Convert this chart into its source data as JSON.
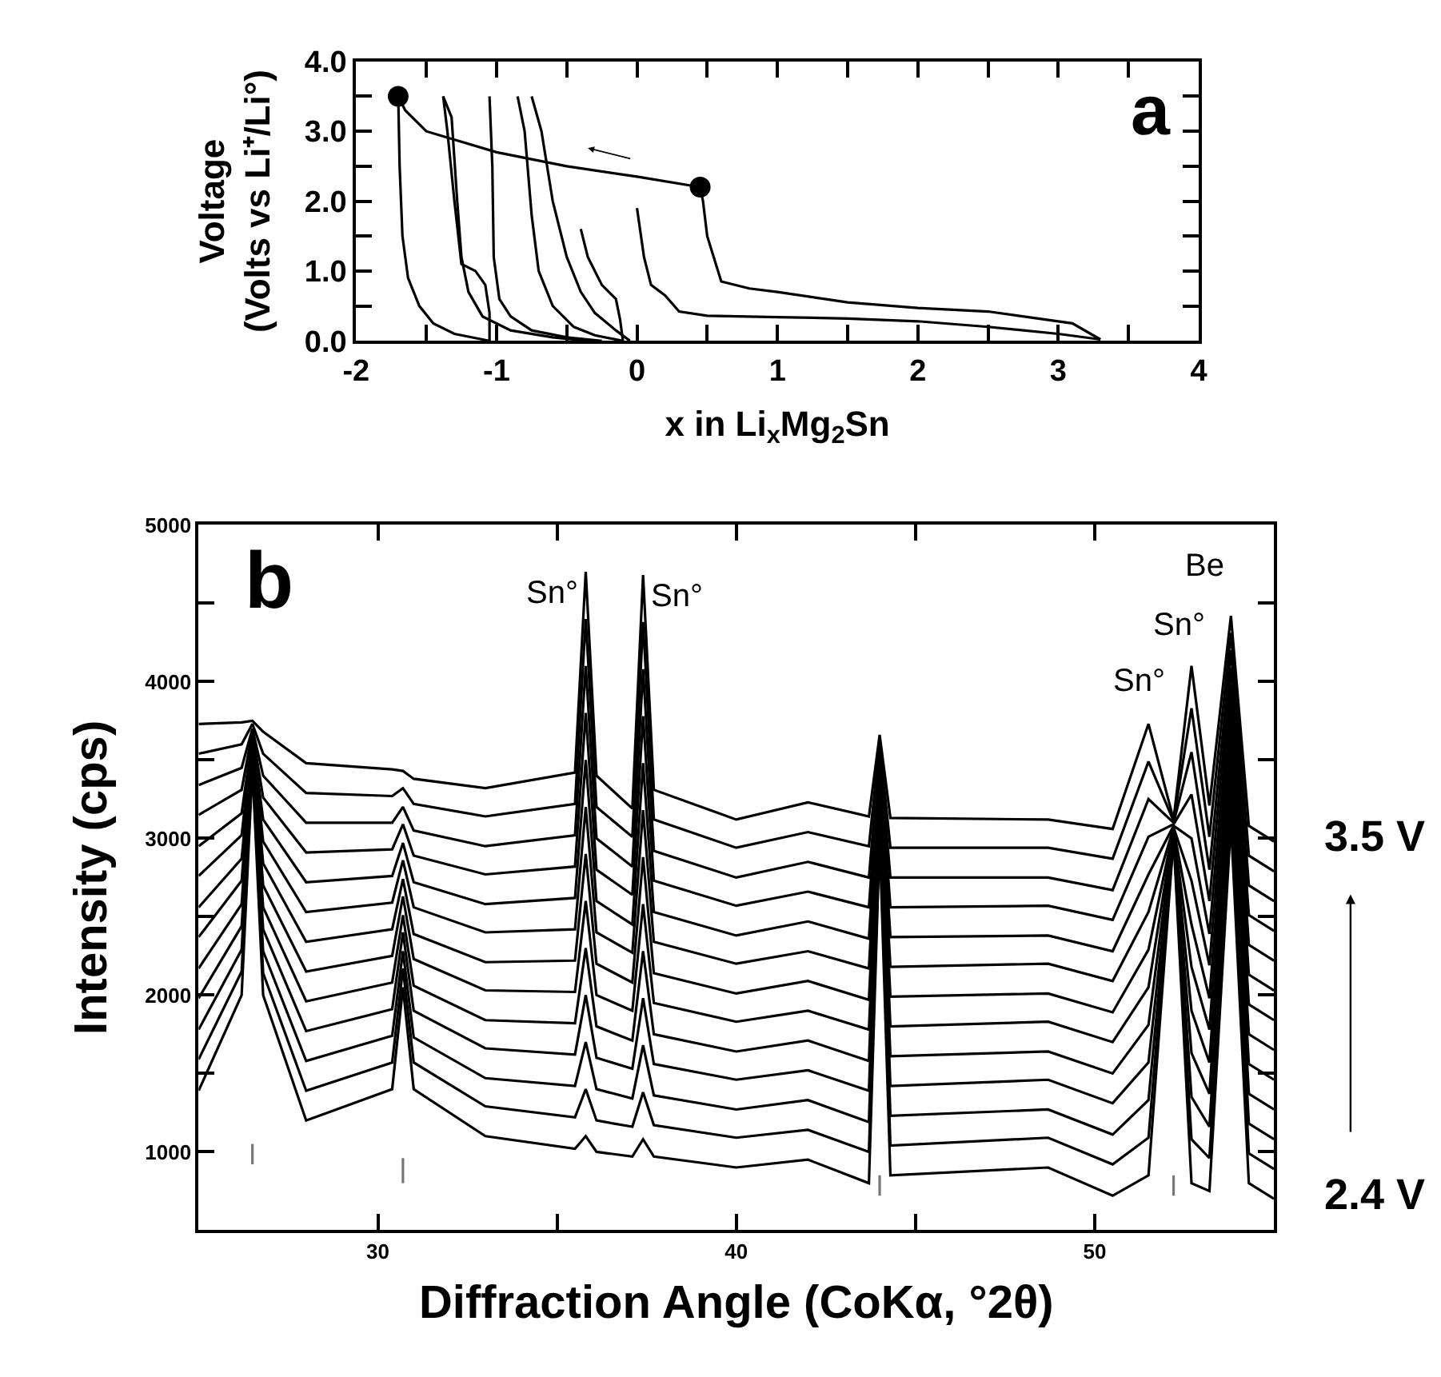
{
  "chart_data": [
    {
      "type": "line",
      "xlabel": "x in Li$_{x}$Mg$_{2}$Sn",
      "ylabel": "Voltage\n(Volts vs Li⁺/Li°)",
      "annotations": [
        "a"
      ],
      "xlim": [
        -2,
        4
      ],
      "xticks": [
        -2,
        {
          "value": -1.5,
          "label": null
        },
        -1,
        {
          "value": -0.5,
          "label": null
        },
        0,
        {
          "value": 0.5,
          "label": null
        },
        1,
        {
          "value": 1.5,
          "label": null
        },
        2,
        {
          "value": 2.5,
          "label": null
        },
        3,
        {
          "value": 3.5,
          "label": null
        },
        4
      ],
      "ylim": [
        0,
        4
      ],
      "yticks": [
        {
          "value": 0,
          "label": "0.0"
        },
        {
          "value": 0.5,
          "label": null
        },
        {
          "value": 1,
          "label": "1.0"
        },
        {
          "value": 1.5,
          "label": null
        },
        {
          "value": 2,
          "label": "2.0"
        },
        {
          "value": 2.5,
          "label": null
        },
        {
          "value": 3,
          "label": "3.0"
        },
        {
          "value": 3.5,
          "label": null
        },
        {
          "value": 4,
          "label": "4.0"
        }
      ],
      "marker": "none",
      "line_style": "solid",
      "series": [
        {
          "color": "#000000",
          "x": [
            0,
            0.05,
            0.1,
            0.2,
            0.3,
            0.5,
            1.0,
            1.5,
            2.0,
            2.5,
            3.0,
            3.3
          ],
          "values": [
            1.9,
            1.2,
            0.8,
            0.65,
            0.42,
            0.36,
            0.34,
            0.32,
            0.28,
            0.2,
            0.1,
            0.02
          ]
        },
        {
          "color": "#000000",
          "x": [
            3.3,
            3.1,
            2.5,
            2.0,
            1.5,
            1.0,
            0.8,
            0.6,
            0.5,
            0.47,
            0.45
          ],
          "values": [
            0.02,
            0.25,
            0.42,
            0.47,
            0.55,
            0.7,
            0.75,
            0.85,
            1.5,
            2.0,
            2.2
          ]
        },
        {
          "color": "#000000",
          "x": [
            0.45,
            0,
            -0.5,
            -1.0,
            -1.5,
            -1.65,
            -1.7
          ],
          "values": [
            2.2,
            2.35,
            2.5,
            2.7,
            3.0,
            3.3,
            3.5
          ]
        },
        {
          "color": "#000000",
          "x": [
            -1.7,
            -1.69,
            -1.67,
            -1.63,
            -1.55,
            -1.45,
            -1.3,
            -1.1,
            -1.05
          ],
          "values": [
            3.5,
            2.5,
            1.5,
            0.9,
            0.5,
            0.25,
            0.1,
            0.02,
            0
          ]
        },
        {
          "color": "#000000",
          "x": [
            -1.05,
            -1.05,
            -1.08,
            -1.15,
            -1.25,
            -1.3,
            -1.35,
            -1.38
          ],
          "values": [
            0,
            0.4,
            0.8,
            1.0,
            1.1,
            2.0,
            3.0,
            3.5
          ]
        },
        {
          "color": "#000000",
          "x": [
            -1.38,
            -1.32,
            -1.28,
            -1.25,
            -1.2,
            -1.1,
            -0.9,
            -0.6,
            -0.35
          ],
          "values": [
            3.5,
            3.2,
            2.0,
            1.2,
            0.7,
            0.35,
            0.15,
            0.05,
            0
          ]
        },
        {
          "color": "#000000",
          "x": [
            -1.05,
            -1.03,
            -1.02,
            -0.98,
            -0.9,
            -0.75,
            -0.5,
            -0.25
          ],
          "values": [
            3.5,
            2.5,
            1.2,
            0.6,
            0.35,
            0.15,
            0.05,
            0
          ]
        },
        {
          "color": "#000000",
          "x": [
            -0.85,
            -0.8,
            -0.75,
            -0.7,
            -0.6,
            -0.45,
            -0.3,
            -0.1
          ],
          "values": [
            3.5,
            3.0,
            1.8,
            1.0,
            0.5,
            0.2,
            0.08,
            0
          ]
        },
        {
          "color": "#000000",
          "x": [
            -0.75,
            -0.68,
            -0.6,
            -0.5,
            -0.4,
            -0.3,
            -0.15,
            -0.05
          ],
          "values": [
            3.5,
            3.0,
            2.0,
            1.2,
            0.7,
            0.4,
            0.15,
            0
          ]
        },
        {
          "color": "#000000",
          "x": [
            -0.4,
            -0.35,
            -0.25,
            -0.15,
            -0.12,
            -0.1
          ],
          "values": [
            1.6,
            1.2,
            0.8,
            0.6,
            0.3,
            0
          ]
        },
        {
          "color": "#000000",
          "type": "scatter",
          "marker": "circle",
          "x": [
            -1.7,
            0.45
          ],
          "values": [
            3.5,
            2.2
          ]
        }
      ]
    },
    {
      "type": "line",
      "xlabel": "Diffraction Angle (CoKα, °2θ)",
      "ylabel": "Intensity (cps)",
      "annotations": [
        "b",
        {
          "text": "Sn°",
          "x": 35.8,
          "y": 4700
        },
        {
          "text": "Sn°",
          "x": 37.4,
          "y": 4680
        },
        {
          "text": "Sn°",
          "x": 51.5,
          "y": 3730
        },
        {
          "text": "Sn°",
          "x": 52.7,
          "y": 4100
        },
        {
          "text": "Be",
          "x": 53.8,
          "y": 4420
        },
        "3.5 V",
        "2.4 V"
      ],
      "xlim": [
        25,
        55
      ],
      "xticks": [
        30,
        {
          "value": 35,
          "label": null
        },
        40,
        {
          "value": 45,
          "label": null
        },
        50
      ],
      "ylim": [
        500,
        5000
      ],
      "yticks": [
        1000,
        {
          "value": 1500,
          "label": null
        },
        2000,
        {
          "value": 2500,
          "label": null
        },
        3000,
        {
          "value": 3500,
          "label": null
        },
        4000,
        {
          "value": 4500,
          "label": null
        },
        5000
      ],
      "marker": "none",
      "line_style": "solid",
      "x": [
        25,
        26.2,
        26.5,
        26.8,
        28,
        30.4,
        30.7,
        31,
        33,
        35.5,
        35.8,
        36.1,
        37.1,
        37.4,
        37.7,
        40,
        42,
        43.7,
        44,
        44.3,
        48.7,
        50.5,
        51.5,
        52.2,
        52.7,
        53.2,
        53.8,
        54.3,
        55
      ],
      "series": [
        {
          "color": "#000000",
          "values": [
            1390,
            2000,
            3450,
            2000,
            1200,
            1400,
            2050,
            1400,
            1100,
            1020,
            1100,
            1000,
            970,
            1080,
            970,
            900,
            950,
            800,
            3000,
            850,
            900,
            720,
            850,
            3000,
            800,
            750,
            3100,
            800,
            700
          ]
        },
        {
          "color": "#000000",
          "values": [
            1590,
            2150,
            3480,
            2140,
            1390,
            1570,
            2170,
            1570,
            1290,
            1220,
            1400,
            1200,
            1160,
            1380,
            1170,
            1090,
            1140,
            1000,
            3060,
            1040,
            1090,
            920,
            1090,
            3010,
            1080,
            960,
            3210,
            990,
            890
          ]
        },
        {
          "color": "#000000",
          "values": [
            1780,
            2290,
            3500,
            2280,
            1580,
            1740,
            2280,
            1730,
            1470,
            1420,
            1700,
            1400,
            1340,
            1680,
            1360,
            1270,
            1330,
            1190,
            3110,
            1230,
            1270,
            1110,
            1330,
            3020,
            1350,
            1160,
            3320,
            1180,
            1080
          ]
        },
        {
          "color": "#000000",
          "values": [
            1980,
            2440,
            3530,
            2420,
            1770,
            1910,
            2400,
            1900,
            1660,
            1620,
            2000,
            1600,
            1530,
            1980,
            1560,
            1460,
            1520,
            1390,
            3170,
            1420,
            1460,
            1310,
            1570,
            3030,
            1630,
            1370,
            3430,
            1370,
            1270
          ]
        },
        {
          "color": "#000000",
          "values": [
            2170,
            2580,
            3550,
            2560,
            1960,
            2080,
            2510,
            2060,
            1840,
            1820,
            2300,
            1800,
            1710,
            2280,
            1750,
            1640,
            1710,
            1580,
            3220,
            1610,
            1640,
            1500,
            1810,
            3040,
            1900,
            1570,
            3540,
            1560,
            1460
          ]
        },
        {
          "color": "#000000",
          "values": [
            2370,
            2730,
            3580,
            2700,
            2150,
            2250,
            2630,
            2230,
            2030,
            2020,
            2600,
            2000,
            1900,
            2580,
            1950,
            1830,
            1900,
            1780,
            3280,
            1800,
            1830,
            1700,
            2050,
            3050,
            2180,
            1780,
            3650,
            1750,
            1650
          ]
        },
        {
          "color": "#000000",
          "values": [
            2560,
            2870,
            3600,
            2840,
            2340,
            2420,
            2740,
            2390,
            2210,
            2220,
            2900,
            2200,
            2080,
            2880,
            2140,
            2010,
            2090,
            1970,
            3330,
            1990,
            2010,
            1890,
            2290,
            3060,
            2450,
            1980,
            3760,
            1940,
            1840
          ]
        },
        {
          "color": "#000000",
          "values": [
            2760,
            3020,
            3630,
            2980,
            2530,
            2590,
            2860,
            2560,
            2400,
            2420,
            3200,
            2400,
            2270,
            3180,
            2340,
            2200,
            2280,
            2170,
            3390,
            2180,
            2200,
            2090,
            2530,
            3070,
            2730,
            2190,
            3870,
            2130,
            2030
          ]
        },
        {
          "color": "#000000",
          "values": [
            2950,
            3160,
            3650,
            3120,
            2720,
            2760,
            2970,
            2720,
            2580,
            2620,
            3500,
            2600,
            2450,
            3480,
            2530,
            2380,
            2470,
            2360,
            3440,
            2370,
            2380,
            2280,
            2770,
            3080,
            3000,
            2390,
            3980,
            2320,
            2220
          ]
        },
        {
          "color": "#000000",
          "values": [
            3150,
            3310,
            3680,
            3260,
            2910,
            2930,
            3090,
            2890,
            2770,
            2820,
            3800,
            2800,
            2640,
            3780,
            2730,
            2570,
            2660,
            2560,
            3500,
            2560,
            2570,
            2480,
            3010,
            3090,
            3280,
            2600,
            4090,
            2510,
            2410
          ]
        },
        {
          "color": "#000000",
          "values": [
            3340,
            3450,
            3700,
            3400,
            3100,
            3100,
            3200,
            3050,
            2950,
            3020,
            4100,
            3000,
            2820,
            4080,
            2920,
            2750,
            2850,
            2750,
            3550,
            2750,
            2750,
            2670,
            3250,
            3100,
            3550,
            2800,
            4200,
            2700,
            2600
          ]
        },
        {
          "color": "#000000",
          "values": [
            3540,
            3600,
            3730,
            3540,
            3290,
            3270,
            3320,
            3220,
            3140,
            3220,
            4400,
            3200,
            3010,
            4380,
            3120,
            2940,
            3040,
            2950,
            3610,
            2940,
            2940,
            2870,
            3490,
            3110,
            3830,
            3010,
            4310,
            2890,
            2790
          ]
        },
        {
          "color": "#000000",
          "values": [
            3730,
            3740,
            3750,
            3680,
            3480,
            3440,
            3430,
            3380,
            3320,
            3420,
            4700,
            3400,
            3190,
            4680,
            3310,
            3120,
            3230,
            3140,
            3660,
            3130,
            3120,
            3060,
            3730,
            3120,
            4100,
            3210,
            4420,
            3080,
            2980
          ]
        },
        {
          "color": "#777777",
          "x": [
            26.5,
            26.5
          ],
          "values": [
            920,
            1050
          ]
        },
        {
          "color": "#777777",
          "x": [
            30.7,
            30.7
          ],
          "values": [
            800,
            960
          ]
        },
        {
          "color": "#777777",
          "x": [
            44,
            44
          ],
          "values": [
            720,
            850
          ]
        },
        {
          "color": "#777777",
          "x": [
            52.2,
            52.2
          ],
          "values": [
            720,
            850
          ]
        }
      ]
    }
  ]
}
